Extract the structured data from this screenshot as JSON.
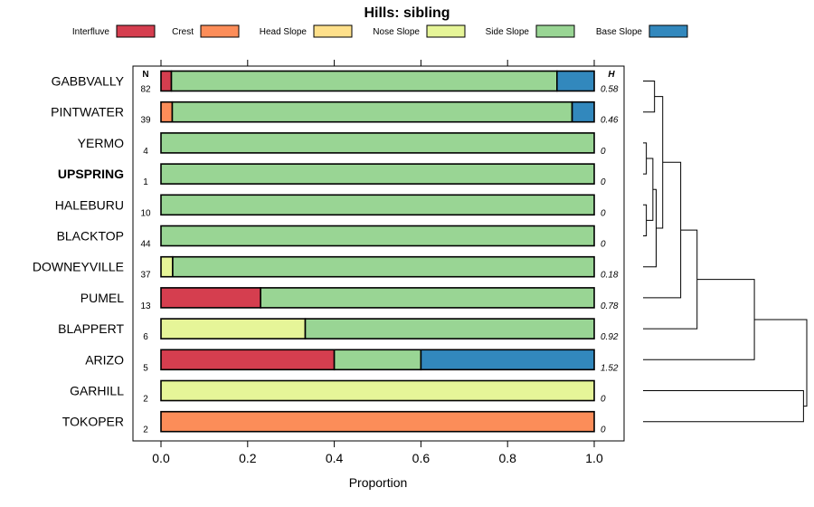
{
  "chart_data": {
    "type": "bar",
    "orientation": "horizontal",
    "stacked": true,
    "title": "Hills: sibling",
    "xlabel": "Proportion",
    "ylabel": "",
    "xlim": [
      0,
      1
    ],
    "x_ticks": [
      "0.0",
      "0.2",
      "0.4",
      "0.6",
      "0.8",
      "1.0"
    ],
    "n_header": "N",
    "h_header": "H",
    "legend": {
      "position": "top",
      "entries": [
        {
          "name": "Interfluve",
          "color": "#d53e4f"
        },
        {
          "name": "Crest",
          "color": "#fc8d59"
        },
        {
          "name": "Head Slope",
          "color": "#fee08b"
        },
        {
          "name": "Nose Slope",
          "color": "#e6f598"
        },
        {
          "name": "Side Slope",
          "color": "#99d594"
        },
        {
          "name": "Base Slope",
          "color": "#3288bd"
        }
      ]
    },
    "categories": [
      {
        "name": "GABBVALLY",
        "n": "82",
        "h": "0.58",
        "bold": false
      },
      {
        "name": "PINTWATER",
        "n": "39",
        "h": "0.46",
        "bold": false
      },
      {
        "name": "YERMO",
        "n": "4",
        "h": "0",
        "bold": false
      },
      {
        "name": "UPSPRING",
        "n": "1",
        "h": "0",
        "bold": true
      },
      {
        "name": "HALEBURU",
        "n": "10",
        "h": "0",
        "bold": false
      },
      {
        "name": "BLACKTOP",
        "n": "44",
        "h": "0",
        "bold": false
      },
      {
        "name": "DOWNEYVILLE",
        "n": "37",
        "h": "0.18",
        "bold": false
      },
      {
        "name": "PUMEL",
        "n": "13",
        "h": "0.78",
        "bold": false
      },
      {
        "name": "BLAPPERT",
        "n": "6",
        "h": "0.92",
        "bold": false
      },
      {
        "name": "ARIZO",
        "n": "5",
        "h": "1.52",
        "bold": false
      },
      {
        "name": "GARHILL",
        "n": "2",
        "h": "0",
        "bold": false
      },
      {
        "name": "TOKOPER",
        "n": "2",
        "h": "0",
        "bold": false
      }
    ],
    "series": [
      {
        "name": "Interfluve",
        "values": [
          0.024,
          0,
          0,
          0,
          0,
          0,
          0,
          0.23,
          0,
          0.4,
          0,
          0
        ]
      },
      {
        "name": "Crest",
        "values": [
          0,
          0.026,
          0,
          0,
          0,
          0,
          0,
          0,
          0,
          0,
          0,
          1.0
        ]
      },
      {
        "name": "Head Slope",
        "values": [
          0,
          0,
          0,
          0,
          0,
          0,
          0,
          0,
          0,
          0,
          0,
          0
        ]
      },
      {
        "name": "Nose Slope",
        "values": [
          0,
          0,
          0,
          0,
          0,
          0,
          0.027,
          0,
          0.333,
          0,
          1.0,
          0
        ]
      },
      {
        "name": "Side Slope",
        "values": [
          0.89,
          0.923,
          1.0,
          1.0,
          1.0,
          1.0,
          0.973,
          0.77,
          0.667,
          0.2,
          0,
          0
        ]
      },
      {
        "name": "Base Slope",
        "values": [
          0.086,
          0.051,
          0,
          0,
          0,
          0,
          0,
          0,
          0,
          0.4,
          0,
          0
        ]
      }
    ],
    "dendrogram": {
      "merges": [
        {
          "a": 0,
          "b": 1,
          "height": 0.07
        },
        {
          "a": 2,
          "b": 3,
          "height": 0.02
        },
        {
          "a": 4,
          "b": 5,
          "height": 0.02
        },
        {
          "a": "m1",
          "b": "m2",
          "height": 0.06
        },
        {
          "a": "m3",
          "b": 6,
          "height": 0.08
        },
        {
          "a": "m0",
          "b": "m4",
          "height": 0.12
        },
        {
          "a": "m5",
          "b": 7,
          "height": 0.23
        },
        {
          "a": "m6",
          "b": 8,
          "height": 0.33
        },
        {
          "a": "m7",
          "b": 9,
          "height": 0.68
        },
        {
          "a": 10,
          "b": 11,
          "height": 0.98
        },
        {
          "a": "m8",
          "b": "m9",
          "height": 1.0
        }
      ]
    }
  }
}
